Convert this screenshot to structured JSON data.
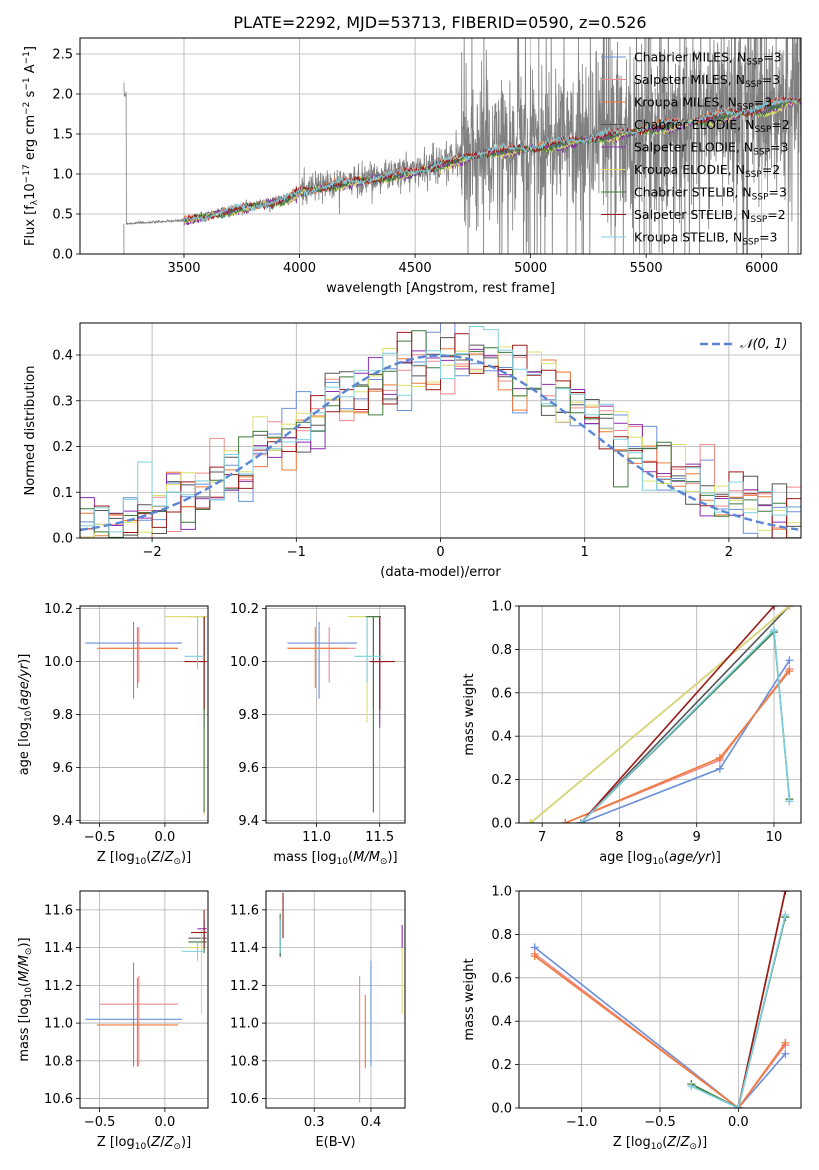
{
  "figure": {
    "title": "PLATE=2292, MJD=53713, FIBERID=0590, z=0.526"
  },
  "colors": {
    "Chabrier MILES": "#6a8fd8",
    "Salpeter MILES": "#f08a8a",
    "Kroupa MILES": "#f07a3a",
    "Chabrier ELODIE": "#555555",
    "Salpeter ELODIE": "#8b2fb0",
    "Kroupa ELODIE": "#dde06a",
    "Chabrier STELIB": "#3d7a3d",
    "Salpeter STELIB": "#9b1a1a",
    "Kroupa STELIB": "#7fd0e0",
    "spectrum": "#808080",
    "normal": "#5b86d6"
  },
  "chart_data": [
    {
      "id": "spectrum",
      "type": "line",
      "xlabel": "wavelength [Angstrom, rest frame]",
      "ylabel": "Flux [f_λ10^-17 erg cm^-2 s^-1 A^-1]",
      "xlim": [
        3050,
        6170
      ],
      "ylim": [
        0,
        2.7
      ],
      "xticks": [
        3500,
        4000,
        4500,
        5000,
        5500,
        6000
      ],
      "yticks": [
        0.0,
        0.5,
        1.0,
        1.5,
        2.0,
        2.5
      ],
      "legend": [
        "Chabrier MILES, N_SSP=3",
        "Salpeter MILES, N_SSP=3",
        "Kroupa MILES, N_SSP=3",
        "Chabrier ELODIE, N_SSP=2",
        "Salpeter ELODIE, N_SSP=3",
        "Kroupa ELODIE, N_SSP=2",
        "Chabrier STELIB, N_SSP=3",
        "Salpeter STELIB, N_SSP=2",
        "Kroupa STELIB, N_SSP=3"
      ],
      "legend_position": "upper-right",
      "data_range": [
        3240,
        6170
      ],
      "data_level": [
        [
          3250,
          0.38
        ],
        [
          3500,
          0.42
        ],
        [
          3700,
          0.55
        ],
        [
          3950,
          0.7
        ],
        [
          4000,
          0.8
        ],
        [
          4500,
          1.05
        ],
        [
          4800,
          1.3
        ],
        [
          5000,
          1.35
        ],
        [
          5500,
          1.6
        ],
        [
          6000,
          1.85
        ],
        [
          6170,
          2.0
        ]
      ],
      "model_range": [
        3500,
        6170
      ]
    },
    {
      "id": "residual_hist",
      "type": "histogram",
      "xlabel": "(data-model)/error",
      "ylabel": "Normed distribution",
      "xlim": [
        -2.5,
        2.5
      ],
      "ylim": [
        0,
        0.47
      ],
      "xticks": [
        -2,
        -1,
        0,
        1,
        2
      ],
      "yticks": [
        0.0,
        0.1,
        0.2,
        0.3,
        0.4
      ],
      "legend": [
        "𝒩(0, 1)"
      ],
      "normal": {
        "mean": 0,
        "sigma": 1
      },
      "bin_width": 0.1
    },
    {
      "id": "age_vs_Z",
      "type": "errorbar",
      "xlabel": "Z [log10(Z/Z⊙)]",
      "ylabel": "age [log10(age/yr)]",
      "xlim": [
        -0.65,
        0.33
      ],
      "ylim": [
        9.39,
        10.21
      ],
      "xticks": [
        -0.5,
        0.0
      ],
      "yticks": [
        9.4,
        9.6,
        9.8,
        10.0,
        10.2
      ],
      "points": [
        {
          "model": "Chabrier MILES",
          "x": -0.24,
          "y": 10.07,
          "xerr": [
            0.37,
            0.37
          ],
          "yerr": [
            0.21,
            0.08
          ]
        },
        {
          "model": "Salpeter MILES",
          "x": -0.2,
          "y": 10.05,
          "xerr": [
            0.3,
            0.3
          ],
          "yerr": [
            0.13,
            0.08
          ]
        },
        {
          "model": "Kroupa MILES",
          "x": -0.21,
          "y": 10.05,
          "xerr": [
            0.31,
            0.31
          ],
          "yerr": [
            0.15,
            0.08
          ]
        },
        {
          "model": "Chabrier ELODIE",
          "x": 0.3,
          "y": 10.17,
          "xerr": [
            0.12,
            0.02
          ],
          "yerr": [
            0.35,
            0.0
          ]
        },
        {
          "model": "Salpeter ELODIE",
          "x": 0.3,
          "y": 10.0,
          "xerr": [
            0.0,
            0.0
          ],
          "yerr": [
            0.25,
            0.17
          ]
        },
        {
          "model": "Kroupa ELODIE",
          "x": 0.3,
          "y": 10.17,
          "xerr": [
            0.3,
            0.02
          ],
          "yerr": [
            0.75,
            0.0
          ]
        },
        {
          "model": "Chabrier STELIB",
          "x": 0.3,
          "y": 10.17,
          "xerr": [
            0.0,
            0.0
          ],
          "yerr": [
            0.74,
            0.0
          ]
        },
        {
          "model": "Salpeter STELIB",
          "x": 0.3,
          "y": 10.0,
          "xerr": [
            0.15,
            0.02
          ],
          "yerr": [
            0.18,
            0.17
          ]
        },
        {
          "model": "Kroupa STELIB",
          "x": 0.25,
          "y": 10.02,
          "xerr": [
            0.1,
            0.05
          ],
          "yerr": [
            0.05,
            0.15
          ]
        }
      ]
    },
    {
      "id": "age_vs_mass",
      "type": "errorbar",
      "xlabel": "mass [log10(M/M⊙)]",
      "ylabel": "",
      "xlim": [
        10.6,
        11.7
      ],
      "ylim": [
        9.39,
        10.21
      ],
      "xticks": [
        11.0,
        11.5
      ],
      "yticks": [
        9.4,
        9.6,
        9.8,
        10.0,
        10.2
      ],
      "points": [
        {
          "model": "Chabrier MILES",
          "x": 11.02,
          "y": 10.07,
          "xerr": [
            0.25,
            0.3
          ],
          "yerr": [
            0.21,
            0.08
          ]
        },
        {
          "model": "Salpeter MILES",
          "x": 11.1,
          "y": 10.05,
          "xerr": [
            0.33,
            0.21
          ],
          "yerr": [
            0.13,
            0.08
          ]
        },
        {
          "model": "Kroupa MILES",
          "x": 10.99,
          "y": 10.05,
          "xerr": [
            0.22,
            0.25
          ],
          "yerr": [
            0.15,
            0.08
          ]
        },
        {
          "model": "Chabrier ELODIE",
          "x": 11.45,
          "y": 10.17,
          "xerr": [
            0.07,
            0.06
          ],
          "yerr": [
            0.35,
            0.0
          ]
        },
        {
          "model": "Salpeter ELODIE",
          "x": 11.5,
          "y": 10.0,
          "xerr": [
            0.05,
            0.05
          ],
          "yerr": [
            0.25,
            0.17
          ]
        },
        {
          "model": "Kroupa ELODIE",
          "x": 11.4,
          "y": 10.17,
          "xerr": [
            0.15,
            0.1
          ],
          "yerr": [
            0.4,
            0.0
          ]
        },
        {
          "model": "Chabrier STELIB",
          "x": 11.45,
          "y": 10.17,
          "xerr": [
            0.06,
            0.05
          ],
          "yerr": [
            0.74,
            0.0
          ]
        },
        {
          "model": "Salpeter STELIB",
          "x": 11.5,
          "y": 10.0,
          "xerr": [
            0.08,
            0.12
          ],
          "yerr": [
            0.18,
            0.17
          ]
        },
        {
          "model": "Kroupa STELIB",
          "x": 11.4,
          "y": 10.02,
          "xerr": [
            0.1,
            0.12
          ],
          "yerr": [
            0.1,
            0.15
          ]
        }
      ]
    },
    {
      "id": "weight_vs_age",
      "type": "line",
      "xlabel": "age [log10(age/yr)]",
      "ylabel": "mass weight",
      "xlim": [
        6.7,
        10.35
      ],
      "ylim": [
        0,
        1.0
      ],
      "xticks": [
        7,
        8,
        9,
        10
      ],
      "yticks": [
        0.0,
        0.2,
        0.4,
        0.6,
        0.8,
        1.0
      ],
      "series": [
        {
          "model": "Chabrier MILES",
          "x": [
            7.5,
            9.3,
            10.2
          ],
          "y": [
            0.0,
            0.25,
            0.75
          ]
        },
        {
          "model": "Salpeter MILES",
          "x": [
            7.3,
            9.3,
            10.2
          ],
          "y": [
            0.0,
            0.29,
            0.71
          ]
        },
        {
          "model": "Kroupa MILES",
          "x": [
            7.3,
            9.3,
            10.2
          ],
          "y": [
            0.0,
            0.3,
            0.7
          ]
        },
        {
          "model": "Chabrier ELODIE",
          "x": [
            7.5,
            10.2
          ],
          "y": [
            0.0,
            1.0
          ]
        },
        {
          "model": "Salpeter ELODIE",
          "x": [
            6.85,
            10.2
          ],
          "y": [
            0.0,
            1.0
          ]
        },
        {
          "model": "Kroupa ELODIE",
          "x": [
            6.85,
            10.2
          ],
          "y": [
            0.0,
            1.0
          ]
        },
        {
          "model": "Chabrier STELIB",
          "x": [
            7.5,
            10.0,
            10.2
          ],
          "y": [
            0.0,
            0.88,
            0.11
          ]
        },
        {
          "model": "Salpeter STELIB",
          "x": [
            7.5,
            10.0
          ],
          "y": [
            0.0,
            1.0
          ]
        },
        {
          "model": "Kroupa STELIB",
          "x": [
            7.5,
            10.0,
            10.2
          ],
          "y": [
            0.0,
            0.89,
            0.1
          ]
        }
      ]
    },
    {
      "id": "mass_vs_Z",
      "type": "errorbar",
      "xlabel": "Z [log10(Z/Z⊙)]",
      "ylabel": "mass [log10(M/M⊙)]",
      "xlim": [
        -0.65,
        0.33
      ],
      "ylim": [
        10.55,
        11.7
      ],
      "xticks": [
        -0.5,
        0.0
      ],
      "yticks": [
        10.6,
        10.8,
        11.0,
        11.2,
        11.4,
        11.6
      ],
      "points": [
        {
          "model": "Chabrier MILES",
          "x": -0.24,
          "y": 11.02,
          "xerr": [
            0.37,
            0.37
          ],
          "yerr": [
            0.25,
            0.3
          ]
        },
        {
          "model": "Salpeter MILES",
          "x": -0.2,
          "y": 11.1,
          "xerr": [
            0.3,
            0.3
          ],
          "yerr": [
            0.33,
            0.15
          ]
        },
        {
          "model": "Kroupa MILES",
          "x": -0.21,
          "y": 10.99,
          "xerr": [
            0.31,
            0.31
          ],
          "yerr": [
            0.22,
            0.25
          ]
        },
        {
          "model": "Chabrier ELODIE",
          "x": 0.3,
          "y": 11.45,
          "xerr": [
            0.12,
            0.02
          ],
          "yerr": [
            0.07,
            0.06
          ]
        },
        {
          "model": "Salpeter ELODIE",
          "x": 0.3,
          "y": 11.5,
          "xerr": [
            0.05,
            0.02
          ],
          "yerr": [
            0.05,
            0.05
          ]
        },
        {
          "model": "Kroupa ELODIE",
          "x": 0.28,
          "y": 11.4,
          "xerr": [
            0.1,
            0.02
          ],
          "yerr": [
            0.35,
            0.1
          ]
        },
        {
          "model": "Chabrier STELIB",
          "x": 0.3,
          "y": 11.43,
          "xerr": [
            0.12,
            0.02
          ],
          "yerr": [
            0.06,
            0.05
          ]
        },
        {
          "model": "Salpeter STELIB",
          "x": 0.3,
          "y": 11.48,
          "xerr": [
            0.1,
            0.02
          ],
          "yerr": [
            0.08,
            0.12
          ]
        },
        {
          "model": "Kroupa STELIB",
          "x": 0.25,
          "y": 11.38,
          "xerr": [
            0.12,
            0.05
          ],
          "yerr": [
            0.05,
            0.05
          ]
        }
      ]
    },
    {
      "id": "mass_vs_EBV",
      "type": "errorbar",
      "xlabel": "E(B-V)",
      "ylabel": "",
      "xlim": [
        0.215,
        0.46
      ],
      "ylim": [
        10.55,
        11.7
      ],
      "xticks": [
        0.3,
        0.4
      ],
      "yticks": [
        10.6,
        10.8,
        11.0,
        11.2,
        11.4,
        11.6
      ],
      "points": [
        {
          "model": "Chabrier MILES",
          "x": 0.4,
          "y": 11.02,
          "xerr": [
            0,
            0
          ],
          "yerr": [
            0.25,
            0.31
          ]
        },
        {
          "model": "Salpeter MILES",
          "x": 0.38,
          "y": 11.05,
          "xerr": [
            0,
            0
          ],
          "yerr": [
            0.47,
            0.2
          ]
        },
        {
          "model": "Kroupa MILES",
          "x": 0.39,
          "y": 10.99,
          "xerr": [
            0,
            0
          ],
          "yerr": [
            0.23,
            0.16
          ]
        },
        {
          "model": "Chabrier ELODIE",
          "x": 0.24,
          "y": 11.45,
          "xerr": [
            0,
            0
          ],
          "yerr": [
            0.1,
            0.1
          ]
        },
        {
          "model": "Salpeter ELODIE",
          "x": 0.455,
          "y": 11.45,
          "xerr": [
            0,
            0
          ],
          "yerr": [
            0.05,
            0.07
          ]
        },
        {
          "model": "Kroupa ELODIE",
          "x": 0.455,
          "y": 11.25,
          "xerr": [
            0,
            0
          ],
          "yerr": [
            0.2,
            0.15
          ]
        },
        {
          "model": "Chabrier STELIB",
          "x": 0.24,
          "y": 11.48,
          "xerr": [
            0,
            0
          ],
          "yerr": [
            0.12,
            0.1
          ]
        },
        {
          "model": "Salpeter STELIB",
          "x": 0.245,
          "y": 11.55,
          "xerr": [
            0,
            0
          ],
          "yerr": [
            0.1,
            0.14
          ]
        },
        {
          "model": "Kroupa STELIB",
          "x": 0.24,
          "y": 11.45,
          "xerr": [
            0,
            0
          ],
          "yerr": [
            0.08,
            0.1
          ]
        }
      ]
    },
    {
      "id": "weight_vs_Z",
      "type": "line",
      "xlabel": "Z [log10(Z/Z⊙)]",
      "ylabel": "mass weight",
      "xlim": [
        -1.4,
        0.4
      ],
      "ylim": [
        0,
        1.0
      ],
      "xticks": [
        -1.0,
        -0.5,
        0.0
      ],
      "yticks": [
        0.0,
        0.2,
        0.4,
        0.6,
        0.8,
        1.0
      ],
      "series": [
        {
          "model": "Chabrier MILES",
          "x": [
            -1.3,
            0.0,
            0.3
          ],
          "y": [
            0.74,
            0.0,
            0.25
          ]
        },
        {
          "model": "Salpeter MILES",
          "x": [
            -1.3,
            0.0,
            0.3
          ],
          "y": [
            0.71,
            0.0,
            0.29
          ]
        },
        {
          "model": "Kroupa MILES",
          "x": [
            -1.3,
            0.0,
            0.3
          ],
          "y": [
            0.7,
            0.0,
            0.3
          ]
        },
        {
          "model": "Chabrier ELODIE",
          "x": [
            0.0,
            0.3
          ],
          "y": [
            0.0,
            1.0
          ]
        },
        {
          "model": "Salpeter ELODIE",
          "x": [
            0.0,
            0.3
          ],
          "y": [
            0.0,
            1.0
          ]
        },
        {
          "model": "Kroupa ELODIE",
          "x": [
            0.0,
            0.3
          ],
          "y": [
            0.0,
            1.0
          ]
        },
        {
          "model": "Chabrier STELIB",
          "x": [
            -0.3,
            0.0,
            0.3
          ],
          "y": [
            0.11,
            0.0,
            0.88
          ]
        },
        {
          "model": "Salpeter STELIB",
          "x": [
            0.0,
            0.3
          ],
          "y": [
            0.0,
            1.0
          ]
        },
        {
          "model": "Kroupa STELIB",
          "x": [
            -0.3,
            0.0,
            0.3
          ],
          "y": [
            0.1,
            0.0,
            0.89
          ]
        }
      ]
    }
  ]
}
